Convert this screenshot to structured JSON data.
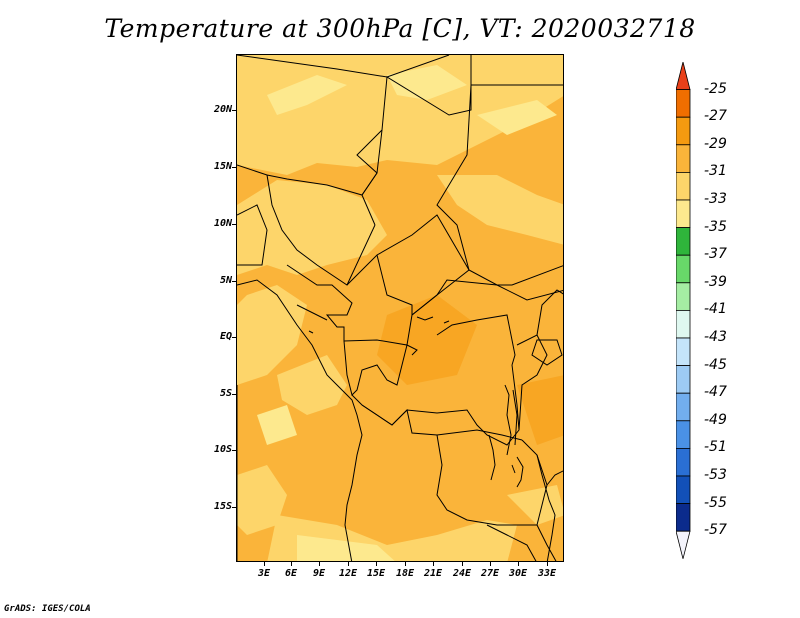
{
  "title": "Temperature at 300hPa [C], VT: 2020032718",
  "credit": "GrADS: IGES/COLA",
  "axes": {
    "lat_labels": [
      "20N",
      "15N",
      "10N",
      "5N",
      "EQ",
      "5S",
      "10S",
      "15S"
    ],
    "lon_labels": [
      "3E",
      "6E",
      "9E",
      "12E",
      "15E",
      "18E",
      "21E",
      "24E",
      "27E",
      "30E",
      "33E"
    ]
  },
  "colorbar": {
    "labels": [
      "-25",
      "-27",
      "-29",
      "-31",
      "-33",
      "-35",
      "-37",
      "-39",
      "-41",
      "-43",
      "-45",
      "-47",
      "-49",
      "-51",
      "-53",
      "-55",
      "-57"
    ],
    "colors": [
      "#e8401a",
      "#f06e00",
      "#f59a10",
      "#fab43a",
      "#fdd56a",
      "#fde98e",
      "#2fb53b",
      "#68d869",
      "#a5eda3",
      "#dff8f0",
      "#c4e4fa",
      "#9dcbf4",
      "#72aeee",
      "#4a91e6",
      "#2a6fd4",
      "#1250b8",
      "#0b2b8c",
      "#f3f3fb"
    ]
  }
}
